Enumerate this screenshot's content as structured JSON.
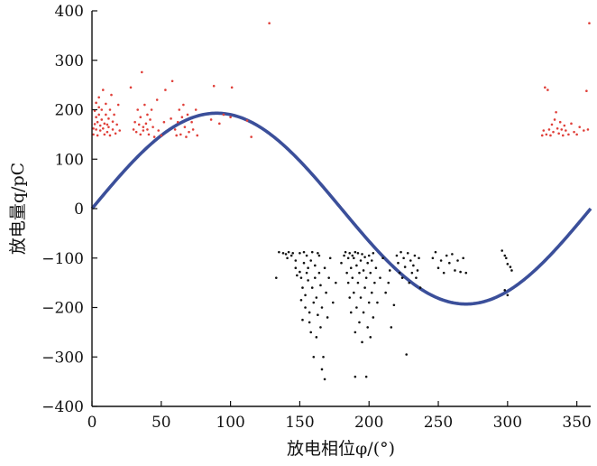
{
  "chart_data": {
    "type": "scatter",
    "title": "",
    "xlabel": "放电相位φ/(°)",
    "ylabel": "放电量q/pC",
    "xlim": [
      0,
      360
    ],
    "ylim": [
      -400,
      400
    ],
    "xticks": [
      0,
      50,
      100,
      150,
      200,
      250,
      300,
      350
    ],
    "yticks": [
      -400,
      -300,
      -200,
      -100,
      0,
      100,
      200,
      300,
      400
    ],
    "grid": false,
    "legend": "none",
    "colors": {
      "positive": "#e0403a",
      "negative": "#111111",
      "sine": "#3b4f9a"
    },
    "sine_curve": {
      "amplitude": 193,
      "period_deg": 360,
      "phase_deg": 0
    },
    "series": [
      {
        "points": [
          [
            1,
            150
          ],
          [
            1,
            162
          ],
          [
            2,
            171
          ],
          [
            2,
            198
          ],
          [
            3,
            214
          ],
          [
            3,
            185
          ],
          [
            3,
            160
          ],
          [
            4,
            148
          ],
          [
            4,
            175
          ],
          [
            5,
            190
          ],
          [
            5,
            205
          ],
          [
            5,
            225
          ],
          [
            6,
            168
          ],
          [
            6,
            158
          ],
          [
            7,
            180
          ],
          [
            7,
            200
          ],
          [
            8,
            240
          ],
          [
            8,
            162
          ],
          [
            9,
            150
          ],
          [
            9,
            172
          ],
          [
            10,
            190
          ],
          [
            10,
            212
          ],
          [
            11,
            170
          ],
          [
            11,
            155
          ],
          [
            12,
            182
          ],
          [
            12,
            165
          ],
          [
            13,
            200
          ],
          [
            13,
            148
          ],
          [
            14,
            230
          ],
          [
            15,
            176
          ],
          [
            15,
            160
          ],
          [
            16,
            190
          ],
          [
            17,
            152
          ],
          [
            18,
            170
          ],
          [
            19,
            210
          ],
          [
            20,
            158
          ],
          [
            28,
            245
          ],
          [
            30,
            160
          ],
          [
            31,
            175
          ],
          [
            32,
            155
          ],
          [
            33,
            200
          ],
          [
            34,
            170
          ],
          [
            35,
            150
          ],
          [
            35,
            185
          ],
          [
            36,
            276
          ],
          [
            37,
            165
          ],
          [
            37,
            158
          ],
          [
            38,
            210
          ],
          [
            39,
            172
          ],
          [
            40,
            190
          ],
          [
            40,
            160
          ],
          [
            41,
            150
          ],
          [
            42,
            180
          ],
          [
            43,
            200
          ],
          [
            44,
            165
          ],
          [
            45,
            145
          ],
          [
            47,
            220
          ],
          [
            48,
            158
          ],
          [
            50,
            148
          ],
          [
            52,
            175
          ],
          [
            53,
            240
          ],
          [
            57,
            182
          ],
          [
            58,
            258
          ],
          [
            60,
            160
          ],
          [
            61,
            148
          ],
          [
            62,
            175
          ],
          [
            63,
            200
          ],
          [
            64,
            150
          ],
          [
            65,
            185
          ],
          [
            66,
            210
          ],
          [
            67,
            165
          ],
          [
            68,
            145
          ],
          [
            69,
            190
          ],
          [
            70,
            155
          ],
          [
            72,
            175
          ],
          [
            73,
            160
          ],
          [
            75,
            200
          ],
          [
            76,
            148
          ],
          [
            86,
            180
          ],
          [
            88,
            248
          ],
          [
            92,
            172
          ],
          [
            95,
            190
          ],
          [
            100,
            185
          ],
          [
            101,
            245
          ],
          [
            112,
            178
          ],
          [
            115,
            145
          ],
          [
            128,
            375
          ],
          [
            325,
            148
          ],
          [
            326,
            158
          ],
          [
            327,
            245
          ],
          [
            328,
            150
          ],
          [
            329,
            240
          ],
          [
            330,
            160
          ],
          [
            331,
            148
          ],
          [
            332,
            170
          ],
          [
            333,
            155
          ],
          [
            334,
            180
          ],
          [
            335,
            195
          ],
          [
            336,
            162
          ],
          [
            337,
            152
          ],
          [
            338,
            175
          ],
          [
            339,
            160
          ],
          [
            340,
            148
          ],
          [
            341,
            168
          ],
          [
            342,
            158
          ],
          [
            344,
            150
          ],
          [
            346,
            172
          ],
          [
            348,
            155
          ],
          [
            350,
            150
          ],
          [
            352,
            165
          ],
          [
            355,
            158
          ],
          [
            357,
            238
          ],
          [
            358,
            160
          ],
          [
            359,
            375
          ]
        ]
      },
      {
        "points": [
          [
            133,
            -140
          ],
          [
            135,
            -88
          ],
          [
            138,
            -90
          ],
          [
            140,
            -92
          ],
          [
            141,
            -100
          ],
          [
            142,
            -88
          ],
          [
            144,
            -95
          ],
          [
            145,
            -90
          ],
          [
            147,
            -105
          ],
          [
            147,
            -120
          ],
          [
            148,
            -135
          ],
          [
            150,
            -128
          ],
          [
            150,
            -90
          ],
          [
            151,
            -140
          ],
          [
            151,
            -185
          ],
          [
            152,
            -160
          ],
          [
            152,
            -225
          ],
          [
            153,
            -88
          ],
          [
            153,
            -110
          ],
          [
            154,
            -200
          ],
          [
            154,
            -175
          ],
          [
            155,
            -130
          ],
          [
            155,
            -95
          ],
          [
            156,
            -145
          ],
          [
            156,
            -120
          ],
          [
            157,
            -210
          ],
          [
            157,
            -230
          ],
          [
            158,
            -250
          ],
          [
            158,
            -105
          ],
          [
            159,
            -88
          ],
          [
            159,
            -160
          ],
          [
            160,
            -300
          ],
          [
            160,
            -190
          ],
          [
            161,
            -140
          ],
          [
            161,
            -115
          ],
          [
            162,
            -260
          ],
          [
            162,
            -180
          ],
          [
            163,
            -90
          ],
          [
            163,
            -215
          ],
          [
            164,
            -130
          ],
          [
            164,
            -95
          ],
          [
            165,
            -240
          ],
          [
            165,
            -155
          ],
          [
            166,
            -325
          ],
          [
            166,
            -200
          ],
          [
            167,
            -300
          ],
          [
            168,
            -345
          ],
          [
            168,
            -120
          ],
          [
            169,
            -170
          ],
          [
            170,
            -220
          ],
          [
            171,
            -140
          ],
          [
            172,
            -100
          ],
          [
            174,
            -190
          ],
          [
            176,
            -150
          ],
          [
            180,
            -110
          ],
          [
            182,
            -95
          ],
          [
            183,
            -88
          ],
          [
            184,
            -130
          ],
          [
            185,
            -100
          ],
          [
            185,
            -150
          ],
          [
            186,
            -90
          ],
          [
            186,
            -180
          ],
          [
            187,
            -120
          ],
          [
            187,
            -210
          ],
          [
            188,
            -95
          ],
          [
            188,
            -140
          ],
          [
            189,
            -100
          ],
          [
            189,
            -170
          ],
          [
            190,
            -88
          ],
          [
            190,
            -250
          ],
          [
            190,
            -340
          ],
          [
            191,
            -115
          ],
          [
            191,
            -200
          ],
          [
            192,
            -90
          ],
          [
            192,
            -150
          ],
          [
            193,
            -130
          ],
          [
            193,
            -230
          ],
          [
            194,
            -105
          ],
          [
            194,
            -180
          ],
          [
            195,
            -92
          ],
          [
            195,
            -270
          ],
          [
            196,
            -125
          ],
          [
            196,
            -210
          ],
          [
            197,
            -98
          ],
          [
            197,
            -160
          ],
          [
            198,
            -140
          ],
          [
            198,
            -340
          ],
          [
            199,
            -110
          ],
          [
            199,
            -240
          ],
          [
            200,
            -95
          ],
          [
            200,
            -190
          ],
          [
            201,
            -130
          ],
          [
            201,
            -260
          ],
          [
            202,
            -105
          ],
          [
            202,
            -170
          ],
          [
            203,
            -90
          ],
          [
            203,
            -220
          ],
          [
            204,
            -150
          ],
          [
            205,
            -120
          ],
          [
            206,
            -190
          ],
          [
            208,
            -140
          ],
          [
            210,
            -100
          ],
          [
            212,
            -170
          ],
          [
            214,
            -150
          ],
          [
            215,
            -125
          ],
          [
            216,
            -240
          ],
          [
            218,
            -195
          ],
          [
            220,
            -95
          ],
          [
            221,
            -110
          ],
          [
            222,
            -130
          ],
          [
            223,
            -88
          ],
          [
            224,
            -140
          ],
          [
            225,
            -100
          ],
          [
            226,
            -118
          ],
          [
            227,
            -295
          ],
          [
            228,
            -90
          ],
          [
            229,
            -150
          ],
          [
            230,
            -105
          ],
          [
            231,
            -130
          ],
          [
            232,
            -115
          ],
          [
            233,
            -95
          ],
          [
            234,
            -140
          ],
          [
            235,
            -125
          ],
          [
            236,
            -100
          ],
          [
            237,
            -160
          ],
          [
            246,
            -100
          ],
          [
            248,
            -88
          ],
          [
            250,
            -120
          ],
          [
            252,
            -105
          ],
          [
            254,
            -130
          ],
          [
            256,
            -95
          ],
          [
            258,
            -110
          ],
          [
            260,
            -92
          ],
          [
            262,
            -125
          ],
          [
            264,
            -105
          ],
          [
            266,
            -128
          ],
          [
            268,
            -100
          ],
          [
            270,
            -130
          ],
          [
            296,
            -85
          ],
          [
            298,
            -95
          ],
          [
            299,
            -100
          ],
          [
            300,
            -112
          ],
          [
            302,
            -118
          ],
          [
            303,
            -125
          ],
          [
            298,
            -165
          ],
          [
            300,
            -175
          ]
        ]
      }
    ]
  }
}
